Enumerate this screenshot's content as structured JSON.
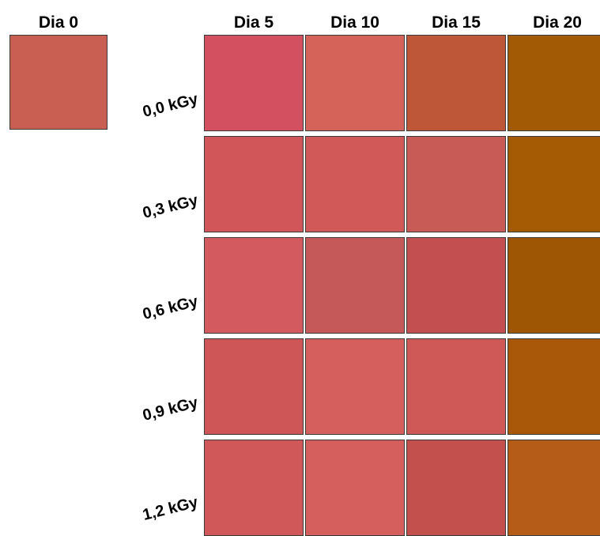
{
  "day0": {
    "label": "Dia 0",
    "color": "#c95f52"
  },
  "columns": [
    {
      "label": "Dia 5"
    },
    {
      "label": "Dia 10"
    },
    {
      "label": "Dia 15"
    },
    {
      "label": "Dia 20"
    }
  ],
  "rows": [
    {
      "label": "0,0 kGy",
      "colors": [
        "#d25060",
        "#d5635a",
        "#be5638",
        "#a35a05"
      ]
    },
    {
      "label": "0,3 kGy",
      "colors": [
        "#d15659",
        "#d15a59",
        "#c85b55",
        "#a45b04"
      ]
    },
    {
      "label": "0,6 kGy",
      "colors": [
        "#d35b60",
        "#c55858",
        "#c44f51",
        "#9e5605"
      ]
    },
    {
      "label": "0,9 kGy",
      "colors": [
        "#cf5656",
        "#d45f5c",
        "#ce5957",
        "#a85808"
      ]
    },
    {
      "label": "1,2 kGy",
      "colors": [
        "#d15858",
        "#d55f5c",
        "#c4504d",
        "#b45c18"
      ]
    }
  ]
}
